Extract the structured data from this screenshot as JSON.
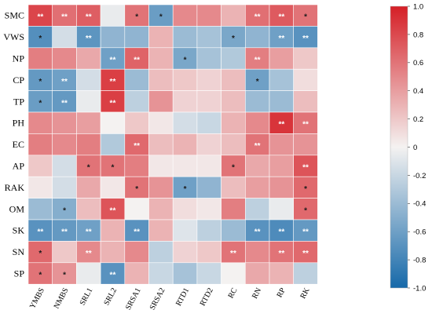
{
  "chart_data": {
    "type": "heatmap",
    "title": "",
    "xlabel": "",
    "ylabel": "",
    "rows": [
      "SMC",
      "VWS",
      "NP",
      "CP",
      "TP",
      "PH",
      "EC",
      "AP",
      "RAK",
      "OM",
      "SK",
      "SN",
      "SP"
    ],
    "columns": [
      "YMBS",
      "NMBS",
      "SRL1",
      "SRL2",
      "SRSA1",
      "SRSA2",
      "RTD1",
      "RTD2",
      "RC",
      "RN",
      "RP",
      "RK"
    ],
    "values": [
      [
        0.82,
        0.62,
        0.7,
        -0.05,
        0.6,
        -0.62,
        0.5,
        0.5,
        0.3,
        0.62,
        0.72,
        0.6
      ],
      [
        -0.72,
        -0.15,
        -0.68,
        -0.45,
        -0.45,
        0.3,
        -0.4,
        -0.35,
        -0.55,
        -0.45,
        -0.6,
        -0.7
      ],
      [
        0.55,
        0.5,
        0.35,
        -0.6,
        0.68,
        0.3,
        -0.55,
        -0.35,
        -0.3,
        0.55,
        0.4,
        0.2
      ],
      [
        -0.65,
        -0.6,
        -0.15,
        0.85,
        -0.4,
        0.25,
        0.2,
        0.15,
        0.25,
        -0.6,
        -0.35,
        0.1
      ],
      [
        -0.62,
        -0.65,
        -0.05,
        0.85,
        -0.25,
        0.45,
        0.15,
        0.15,
        0.25,
        -0.4,
        -0.4,
        0.25
      ],
      [
        0.5,
        0.45,
        0.4,
        0.0,
        0.2,
        0.05,
        -0.15,
        -0.2,
        0.3,
        0.5,
        0.9,
        0.6
      ],
      [
        0.55,
        0.5,
        0.55,
        -0.3,
        0.65,
        0.25,
        0.3,
        0.15,
        0.25,
        0.6,
        0.45,
        0.45
      ],
      [
        0.2,
        -0.15,
        0.6,
        0.6,
        0.55,
        0.05,
        0.05,
        0.05,
        0.6,
        0.35,
        0.4,
        0.75
      ],
      [
        0.05,
        -0.15,
        0.35,
        0.05,
        0.6,
        0.45,
        -0.6,
        -0.45,
        0.25,
        0.4,
        0.45,
        0.65
      ],
      [
        -0.4,
        -0.5,
        0.25,
        0.75,
        0.0,
        0.3,
        0.1,
        0.05,
        0.55,
        -0.25,
        -0.05,
        0.65
      ],
      [
        -0.7,
        -0.65,
        -0.6,
        0.3,
        -0.7,
        0.3,
        -0.1,
        -0.25,
        -0.4,
        -0.7,
        -0.75,
        -0.65
      ],
      [
        0.65,
        0.2,
        0.5,
        0.3,
        0.5,
        -0.25,
        0.15,
        0.2,
        0.6,
        0.5,
        0.6,
        0.65
      ],
      [
        0.6,
        0.45,
        -0.05,
        -0.7,
        0.3,
        -0.2,
        -0.35,
        -0.2,
        0.0,
        0.35,
        0.3,
        -0.25
      ]
    ],
    "significance": [
      [
        "**",
        "**",
        "**",
        "",
        "*",
        "*",
        "",
        "",
        "",
        "**",
        "**",
        "*"
      ],
      [
        "*",
        "",
        "**",
        "",
        "",
        "",
        "",
        "",
        "*",
        "",
        "**",
        "**"
      ],
      [
        "",
        "",
        "",
        "**",
        "**",
        "",
        "*",
        "",
        "",
        "**",
        "",
        ""
      ],
      [
        "*",
        "**",
        "",
        "**",
        "",
        "",
        "",
        "",
        "",
        "*",
        "",
        ""
      ],
      [
        "*",
        "**",
        "",
        "**",
        "",
        "",
        "",
        "",
        "",
        "",
        "",
        ""
      ],
      [
        "",
        "",
        "",
        "",
        "",
        "",
        "",
        "",
        "",
        "",
        "**",
        "**"
      ],
      [
        "",
        "",
        "",
        "",
        "**",
        "",
        "",
        "",
        "",
        "**",
        "",
        ""
      ],
      [
        "",
        "",
        "*",
        "*",
        "",
        "",
        "",
        "",
        "*",
        "",
        "",
        "**"
      ],
      [
        "",
        "",
        "",
        "",
        "*",
        "",
        "*",
        "",
        "",
        "",
        "",
        "*"
      ],
      [
        "",
        "*",
        "",
        "**",
        "",
        "",
        "",
        "",
        "",
        "",
        "",
        "*"
      ],
      [
        "**",
        "**",
        "**",
        "",
        "**",
        "",
        "",
        "",
        "",
        "**",
        "**",
        "**"
      ],
      [
        "*",
        "",
        "**",
        "",
        "",
        "",
        "",
        "",
        "**",
        "",
        "**",
        "**"
      ],
      [
        "*",
        "*",
        "",
        "**",
        "",
        "",
        "",
        "",
        "",
        "",
        "",
        ""
      ]
    ],
    "colorbar": {
      "position": "right",
      "min": -1.0,
      "max": 1.0,
      "ticks": [
        1.0,
        0.8,
        0.6,
        0.4,
        0.2,
        0.0,
        -0.2,
        -0.4,
        -0.6,
        -0.8,
        -1.0
      ],
      "tick_labels": [
        "1.0",
        "0.8",
        "0.6",
        "0.4",
        "0.2",
        "0",
        "-0.2",
        "-0.4",
        "-0.6",
        "-0.8",
        "-1.0"
      ]
    },
    "colors": {
      "positive": "#d51f26",
      "zero": "#f4f2f1",
      "negative": "#1669a9"
    }
  }
}
